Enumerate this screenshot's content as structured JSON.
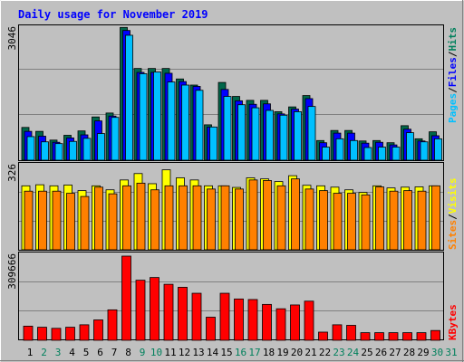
{
  "title": "Daily usage for November 2019",
  "colors": {
    "background": "#c0c0c0",
    "title": "#0000ff",
    "hits": "#00805c",
    "files": "#0000ff",
    "pages": "#00c0ff",
    "visits": "#ffff00",
    "sites": "#ff8000",
    "kbytes": "#ff0000",
    "weekday_label": "#000000",
    "weekend_label": "#00805c"
  },
  "chart_data": [
    {
      "type": "bar",
      "name": "hits-files-pages",
      "ymax_label": "3046",
      "ylim": [
        0,
        3046
      ],
      "legend": [
        "Pages",
        "Files",
        "Hits"
      ],
      "categories": [
        "1",
        "2",
        "3",
        "4",
        "5",
        "6",
        "7",
        "8",
        "9",
        "10",
        "11",
        "12",
        "13",
        "14",
        "15",
        "16",
        "17",
        "18",
        "19",
        "20",
        "21",
        "22",
        "23",
        "24",
        "25",
        "26",
        "27",
        "28",
        "29",
        "30",
        "31"
      ],
      "series": [
        {
          "name": "Hits",
          "values": [
            750,
            660,
            460,
            570,
            670,
            990,
            1080,
            3040,
            2100,
            2100,
            2100,
            1860,
            1720,
            810,
            1780,
            1460,
            1370,
            1370,
            1110,
            1220,
            1480,
            450,
            680,
            680,
            440,
            450,
            400,
            790,
            490,
            650,
            0
          ]
        },
        {
          "name": "Files",
          "values": [
            660,
            550,
            410,
            510,
            580,
            900,
            1010,
            2970,
            2010,
            2010,
            1990,
            1800,
            1690,
            760,
            1620,
            1360,
            1280,
            1290,
            1060,
            1170,
            1410,
            400,
            620,
            620,
            390,
            410,
            350,
            710,
            440,
            560,
            0
          ]
        },
        {
          "name": "Pages",
          "values": [
            540,
            420,
            380,
            430,
            500,
            610,
            980,
            2860,
            1980,
            2020,
            1790,
            1720,
            1600,
            760,
            1460,
            1270,
            1200,
            1140,
            1030,
            1110,
            1230,
            300,
            490,
            450,
            290,
            300,
            300,
            630,
            420,
            490,
            0
          ]
        }
      ]
    },
    {
      "type": "bar",
      "name": "visits-sites",
      "ymax_label": "326",
      "ylim": [
        0,
        326
      ],
      "legend": [
        "Sites",
        "Visits"
      ],
      "categories": [
        "1",
        "2",
        "3",
        "4",
        "5",
        "6",
        "7",
        "8",
        "9",
        "10",
        "11",
        "12",
        "13",
        "14",
        "15",
        "16",
        "17",
        "18",
        "19",
        "20",
        "21",
        "22",
        "23",
        "24",
        "25",
        "26",
        "27",
        "28",
        "29",
        "30",
        "31"
      ],
      "series": [
        {
          "name": "Visits",
          "values": [
            240,
            244,
            240,
            243,
            222,
            240,
            225,
            262,
            286,
            248,
            300,
            270,
            262,
            240,
            240,
            234,
            270,
            266,
            256,
            278,
            242,
            240,
            235,
            225,
            215,
            240,
            232,
            235,
            236,
            240,
            0
          ]
        },
        {
          "name": "Sites",
          "values": [
            220,
            220,
            220,
            212,
            200,
            235,
            210,
            240,
            250,
            225,
            240,
            240,
            240,
            228,
            240,
            228,
            262,
            260,
            240,
            266,
            228,
            222,
            212,
            212,
            206,
            236,
            220,
            222,
            220,
            240,
            0
          ]
        }
      ]
    },
    {
      "type": "bar",
      "name": "kbytes",
      "ymax_label": "309666",
      "ylim": [
        0,
        309666
      ],
      "legend": [
        "KBytes"
      ],
      "categories": [
        "1",
        "2",
        "3",
        "4",
        "5",
        "6",
        "7",
        "8",
        "9",
        "10",
        "11",
        "12",
        "13",
        "14",
        "15",
        "16",
        "17",
        "18",
        "19",
        "20",
        "21",
        "22",
        "23",
        "24",
        "25",
        "26",
        "27",
        "28",
        "29",
        "30",
        "31"
      ],
      "series": [
        {
          "name": "KBytes",
          "values": [
            52000,
            48000,
            44000,
            48000,
            57000,
            75000,
            112000,
            309666,
            221000,
            231000,
            206000,
            195000,
            173000,
            85000,
            173000,
            152000,
            150000,
            132000,
            116000,
            130000,
            144000,
            30000,
            57000,
            55000,
            28000,
            28000,
            28000,
            28000,
            28000,
            36000,
            0
          ]
        }
      ]
    }
  ],
  "days": [
    "1",
    "2",
    "3",
    "4",
    "5",
    "6",
    "7",
    "8",
    "9",
    "10",
    "11",
    "12",
    "13",
    "14",
    "15",
    "16",
    "17",
    "18",
    "19",
    "20",
    "21",
    "22",
    "23",
    "24",
    "25",
    "26",
    "27",
    "28",
    "29",
    "30",
    "31"
  ],
  "weekend_days": [
    "2",
    "3",
    "9",
    "10",
    "16",
    "17",
    "23",
    "24",
    "30",
    "31"
  ]
}
